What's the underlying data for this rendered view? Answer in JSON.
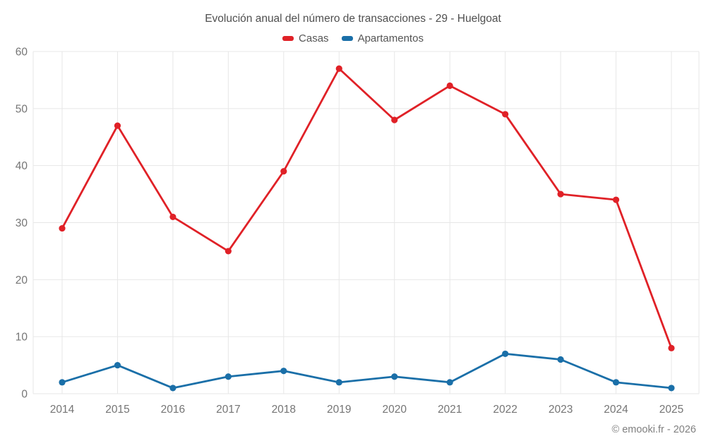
{
  "chart_data": {
    "type": "line",
    "title": "Evolución anual del número de transacciones - 29 - Huelgoat",
    "categories": [
      "2014",
      "2015",
      "2016",
      "2017",
      "2018",
      "2019",
      "2020",
      "2021",
      "2022",
      "2023",
      "2024",
      "2025"
    ],
    "series": [
      {
        "name": "Casas",
        "color": "#e02127",
        "values": [
          29,
          47,
          31,
          25,
          39,
          57,
          48,
          54,
          49,
          35,
          34,
          8
        ]
      },
      {
        "name": "Apartamentos",
        "color": "#1a6fa8",
        "values": [
          2,
          5,
          1,
          3,
          4,
          2,
          3,
          2,
          7,
          6,
          2,
          1
        ]
      }
    ],
    "xlabel": "",
    "ylabel": "",
    "ylim": [
      0,
      60
    ],
    "yticks": [
      0,
      10,
      20,
      30,
      40,
      50,
      60
    ],
    "grid": true,
    "legend_position": "top"
  },
  "footer": {
    "credit": "© emooki.fr - 2026"
  },
  "colors": {
    "grid": "#e7e7e7",
    "axis_text": "#757575",
    "title_text": "#4f4f4f",
    "legend_text": "#555555",
    "credit_text": "#808080",
    "background": "#ffffff"
  }
}
